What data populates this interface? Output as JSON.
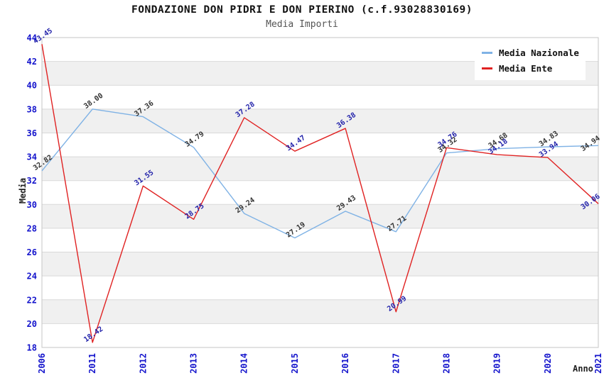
{
  "header": {
    "title": "FONDAZIONE DON PIDRI E DON PIERINO (c.f.93028830169)",
    "subtitle": "Media Importi"
  },
  "chart_data": {
    "type": "line",
    "title": "FONDAZIONE DON PIDRI E DON PIERINO (c.f.93028830169)",
    "subtitle": "Media Importi",
    "xlabel": "Anno",
    "ylabel": "Media",
    "categories": [
      "2006",
      "2011",
      "2012",
      "2013",
      "2014",
      "2015",
      "2016",
      "2017",
      "2018",
      "2019",
      "2020",
      "2021"
    ],
    "ylim": [
      18,
      44
    ],
    "ytick_step": 2,
    "yticks": [
      18,
      20,
      22,
      24,
      26,
      28,
      30,
      32,
      34,
      36,
      38,
      40,
      42,
      44
    ],
    "grid": "horizontal-bands",
    "legend_position": "top-right",
    "series": [
      {
        "name": "Media Nazionale",
        "color": "#7fb2e5",
        "label_color": "#333333",
        "values": [
          32.82,
          38.0,
          37.36,
          34.79,
          29.24,
          27.19,
          29.43,
          27.71,
          34.32,
          34.68,
          34.83,
          34.94
        ]
      },
      {
        "name": "Media Ente",
        "color": "#e02222",
        "label_color": "#2222aa",
        "values": [
          43.45,
          18.42,
          31.55,
          28.75,
          37.28,
          34.47,
          36.38,
          20.99,
          34.76,
          34.18,
          33.94,
          30.06
        ]
      }
    ],
    "colors": {
      "axis_tick": "#1414cc",
      "band": "#f0f0f0",
      "gridline": "#d9d9d9",
      "border": "#c6c6c6"
    }
  }
}
